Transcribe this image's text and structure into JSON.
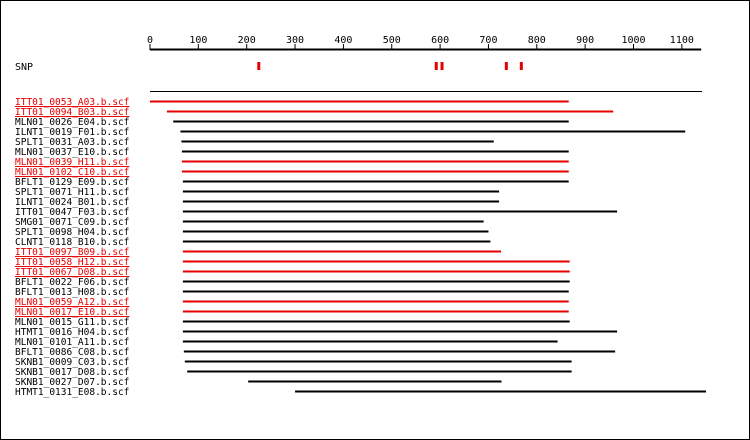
{
  "colors": {
    "highlight": "#e60000",
    "normal": "#000000",
    "background": "#ffffff",
    "border": "#000000"
  },
  "ruler": {
    "ticks": [
      0,
      100,
      200,
      300,
      400,
      500,
      600,
      700,
      800,
      900,
      1000,
      1100
    ],
    "range": [
      0,
      1140
    ]
  },
  "snp": {
    "label": "SNP",
    "positions": [
      225,
      592,
      604,
      737,
      768
    ]
  },
  "reads": [
    {
      "name": "ITT01_0053_A03.b.scf",
      "start": 0,
      "end": 866,
      "highlight": true
    },
    {
      "name": "ITT01_0094_B03.b.scf",
      "start": 35,
      "end": 958,
      "highlight": true
    },
    {
      "name": "MLN01_0026_E04.b.scf",
      "start": 48,
      "end": 866,
      "highlight": false
    },
    {
      "name": "ILNT1_0019_F01.b.scf",
      "start": 63,
      "end": 1107,
      "highlight": false
    },
    {
      "name": "SPLT1_0031_A03.b.scf",
      "start": 65,
      "end": 711,
      "highlight": false
    },
    {
      "name": "MLN01_0037_E10.b.scf",
      "start": 66,
      "end": 866,
      "highlight": false
    },
    {
      "name": "MLN01_0039_H11.b.scf",
      "start": 66,
      "end": 866,
      "highlight": true
    },
    {
      "name": "MLN01_0102_C10.b.scf",
      "start": 66,
      "end": 866,
      "highlight": true
    },
    {
      "name": "BFLT1_0129_E09.b.scf",
      "start": 68,
      "end": 866,
      "highlight": false
    },
    {
      "name": "SPLT1_0071_H11.b.scf",
      "start": 68,
      "end": 722,
      "highlight": false
    },
    {
      "name": "ILNT1_0024_B01.b.scf",
      "start": 68,
      "end": 722,
      "highlight": false
    },
    {
      "name": "ITT01_0047_F03.b.scf",
      "start": 68,
      "end": 966,
      "highlight": false
    },
    {
      "name": "SMG01_0071_C09.b.scf",
      "start": 68,
      "end": 690,
      "highlight": false
    },
    {
      "name": "SPLT1_0098_H04.b.scf",
      "start": 68,
      "end": 700,
      "highlight": false
    },
    {
      "name": "CLNT1_0118_B10.b.scf",
      "start": 68,
      "end": 704,
      "highlight": false
    },
    {
      "name": "ITT01_0097_B09.b.scf",
      "start": 68,
      "end": 726,
      "highlight": true
    },
    {
      "name": "ITT01_0058_H12.b.scf",
      "start": 68,
      "end": 868,
      "highlight": true
    },
    {
      "name": "ITT01_0067_D08.b.scf",
      "start": 68,
      "end": 868,
      "highlight": true
    },
    {
      "name": "BFLT1_0022_F06.b.scf",
      "start": 68,
      "end": 868,
      "highlight": false
    },
    {
      "name": "BFLT1_0013_H08.b.scf",
      "start": 68,
      "end": 866,
      "highlight": false
    },
    {
      "name": "MLN01_0059_A12.b.scf",
      "start": 68,
      "end": 866,
      "highlight": true
    },
    {
      "name": "MLN01_0017_E10.b.scf",
      "start": 68,
      "end": 866,
      "highlight": true
    },
    {
      "name": "MLN01_0015_G11.b.scf",
      "start": 68,
      "end": 868,
      "highlight": false
    },
    {
      "name": "HTMT1_0016_H04.b.scf",
      "start": 68,
      "end": 966,
      "highlight": false
    },
    {
      "name": "MLN01_0101_A11.b.scf",
      "start": 68,
      "end": 843,
      "highlight": false
    },
    {
      "name": "BFLT1_0086_C08.b.scf",
      "start": 70,
      "end": 962,
      "highlight": false
    },
    {
      "name": "SKNB1_0009_C03.b.scf",
      "start": 72,
      "end": 872,
      "highlight": false
    },
    {
      "name": "SKNB1_0017_D08.b.scf",
      "start": 77,
      "end": 872,
      "highlight": false
    },
    {
      "name": "SKNB1_0027_D07.b.scf",
      "start": 203,
      "end": 727,
      "highlight": false
    },
    {
      "name": "HTMT1_0131_E08.b.scf",
      "start": 300,
      "end": 1150,
      "highlight": false
    }
  ]
}
